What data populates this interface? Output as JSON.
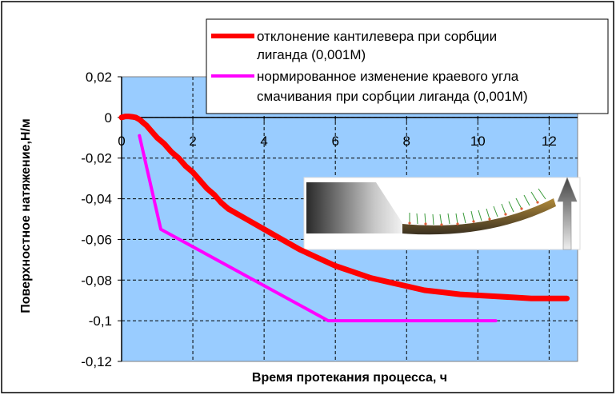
{
  "chart_data": {
    "type": "line",
    "xlabel": "Время протекания процесса, ч",
    "ylabel": "Поверхностное натяжение,Н/м",
    "xlim": [
      0,
      12.8
    ],
    "ylim": [
      -0.12,
      0.02
    ],
    "x_ticks": [
      "0",
      "2",
      "4",
      "6",
      "8",
      "10",
      "12"
    ],
    "y_ticks": [
      "0,02",
      "0",
      "-0,02",
      "-0,04",
      "-0,06",
      "-0,08",
      "-0,1",
      "-0,12"
    ],
    "grid": true,
    "legend_position": "top-right",
    "plot_background": "#99ccff",
    "series": [
      {
        "name": "отклонение кантилевера при сорбции лиганда (0,001М)",
        "color": "#ff0000",
        "x": [
          0.0,
          0.1,
          0.2,
          0.3,
          0.4,
          0.5,
          0.6,
          0.7,
          0.8,
          1.0,
          1.2,
          1.4,
          1.6,
          1.8,
          2.0,
          2.2,
          2.4,
          2.6,
          2.8,
          3.0,
          3.5,
          4.0,
          4.5,
          5.0,
          5.5,
          6.0,
          6.5,
          7.0,
          7.5,
          8.0,
          8.5,
          9.0,
          9.5,
          10.0,
          10.5,
          11.0,
          11.5,
          12.0,
          12.5
        ],
        "y": [
          0.0,
          0.0005,
          0.0005,
          0.0003,
          0.0,
          -0.001,
          -0.0025,
          -0.004,
          -0.006,
          -0.01,
          -0.013,
          -0.017,
          -0.02,
          -0.024,
          -0.027,
          -0.031,
          -0.035,
          -0.038,
          -0.042,
          -0.045,
          -0.05,
          -0.055,
          -0.06,
          -0.065,
          -0.069,
          -0.073,
          -0.076,
          -0.079,
          -0.081,
          -0.083,
          -0.085,
          -0.086,
          -0.087,
          -0.0875,
          -0.088,
          -0.0885,
          -0.089,
          -0.089,
          -0.089
        ]
      },
      {
        "name": "нормированное изменение краевого угла смачивания при сорбции лиганда (0,001М)",
        "color": "#ff00ff",
        "x": [
          0.5,
          1.1,
          5.8,
          10.5
        ],
        "y": [
          -0.009,
          -0.055,
          -0.1,
          -0.1
        ]
      }
    ]
  },
  "legend": {
    "line1": "отклонение кантилевера при сорбции",
    "line2": "лиганда (0,001М)",
    "line3": "нормированное изменение краевого угла",
    "line4": "смачивания при сорбции лиганда (0,001М)"
  }
}
